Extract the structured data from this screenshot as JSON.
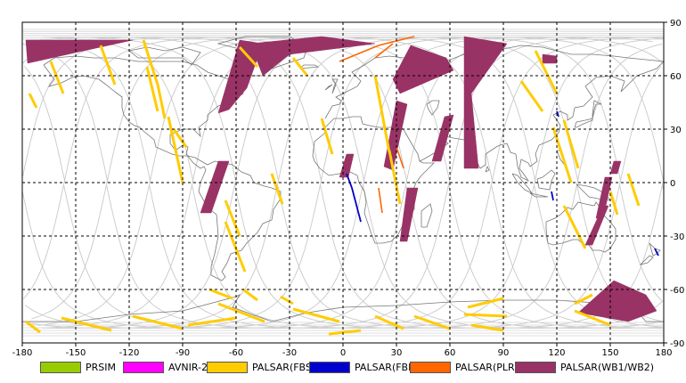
{
  "chart_data": {
    "type": "map",
    "projection": "equirectangular",
    "x_ticks": [
      "-180",
      "-150",
      "-120",
      "-90",
      "-60",
      "-30",
      "0",
      "30",
      "60",
      "90",
      "120",
      "150",
      "180"
    ],
    "y_ticks": [
      "90",
      "60",
      "30",
      "0",
      "-30",
      "-60",
      "-90"
    ],
    "xlim": [
      -180,
      180
    ],
    "ylim": [
      -90,
      90
    ],
    "grid": true,
    "colors": {
      "PRSIM": "#99cc00",
      "AVNIR-2": "#ff00ff",
      "PALSAR(FBS)": "#ffcc00",
      "PALSAR(FBD)": "#0000cc",
      "PALSAR(PLR)": "#ff6600",
      "PALSAR(WB1/WB2)": "#993366"
    },
    "legend": [
      {
        "label": "PRSIM",
        "color": "#99cc00"
      },
      {
        "label": "AVNIR-2",
        "color": "#ff00ff"
      },
      {
        "label": "PALSAR(FBS)",
        "color": "#ffcc00"
      },
      {
        "label": "PALSAR(FBD)",
        "color": "#0000cc"
      },
      {
        "label": "PALSAR(PLR)",
        "color": "#ff6600"
      },
      {
        "label": "PALSAR(WB1/WB2)",
        "color": "#993366"
      }
    ],
    "wb_swaths": [
      [
        [
          -178,
          80
        ],
        [
          -118,
          80
        ],
        [
          -150,
          73
        ],
        [
          -177,
          67
        ]
      ],
      [
        [
          -58,
          80
        ],
        [
          -45,
          78
        ],
        [
          -54,
          53
        ],
        [
          -64,
          41
        ],
        [
          -70,
          39
        ]
      ],
      [
        [
          -52,
          78
        ],
        [
          -12,
          82
        ],
        [
          18,
          78
        ],
        [
          -30,
          72
        ],
        [
          -45,
          60
        ]
      ],
      [
        [
          38,
          77
        ],
        [
          58,
          70
        ],
        [
          62,
          63
        ],
        [
          32,
          50
        ],
        [
          28,
          58
        ]
      ],
      [
        [
          68,
          82
        ],
        [
          92,
          78
        ],
        [
          72,
          50
        ],
        [
          76,
          8
        ],
        [
          68,
          8
        ],
        [
          68,
          50
        ]
      ],
      [
        [
          112,
          72
        ],
        [
          120,
          71
        ],
        [
          120,
          67
        ],
        [
          112,
          67
        ]
      ],
      [
        [
          30,
          46
        ],
        [
          36,
          44
        ],
        [
          28,
          7
        ],
        [
          23,
          9
        ]
      ],
      [
        [
          57,
          37
        ],
        [
          62,
          38
        ],
        [
          55,
          12
        ],
        [
          50,
          12
        ]
      ],
      [
        [
          -70,
          12
        ],
        [
          -64,
          12
        ],
        [
          -74,
          -17
        ],
        [
          -80,
          -17
        ]
      ],
      [
        [
          2,
          16
        ],
        [
          6,
          16
        ],
        [
          3,
          3
        ],
        [
          -2,
          3
        ]
      ],
      [
        [
          152,
          -55
        ],
        [
          170,
          -63
        ],
        [
          176,
          -72
        ],
        [
          160,
          -78
        ],
        [
          132,
          -73
        ]
      ],
      [
        [
          146,
          -13
        ],
        [
          149,
          -13
        ],
        [
          140,
          -35
        ],
        [
          136,
          -35
        ]
      ],
      [
        [
          147,
          3
        ],
        [
          151,
          3
        ],
        [
          146,
          -20
        ],
        [
          142,
          -20
        ]
      ],
      [
        [
          152,
          12
        ],
        [
          156,
          12
        ],
        [
          154,
          5
        ],
        [
          150,
          5
        ]
      ],
      [
        [
          36,
          -3
        ],
        [
          42,
          -3
        ],
        [
          36,
          -33
        ],
        [
          32,
          -33
        ]
      ]
    ],
    "fbs_swaths": [
      [
        [
          -176,
          50
        ],
        [
          -172,
          42
        ]
      ],
      [
        [
          -164,
          68
        ],
        [
          -157,
          50
        ]
      ],
      [
        [
          -136,
          77
        ],
        [
          -128,
          55
        ]
      ],
      [
        [
          -112,
          80
        ],
        [
          -104,
          55
        ],
        [
          -100,
          36
        ]
      ],
      [
        [
          -98,
          37
        ],
        [
          -90,
          0
        ]
      ],
      [
        [
          -66,
          -22
        ],
        [
          -55,
          -50
        ]
      ],
      [
        [
          -75,
          -60
        ],
        [
          -62,
          -65
        ]
      ],
      [
        [
          -44,
          -78
        ],
        [
          -70,
          -68
        ]
      ],
      [
        [
          -90,
          -82
        ],
        [
          -118,
          -75
        ]
      ],
      [
        [
          -130,
          -83
        ],
        [
          -158,
          -76
        ]
      ],
      [
        [
          -170,
          -84
        ],
        [
          -178,
          -78
        ]
      ],
      [
        [
          -60,
          -76
        ],
        [
          -87,
          -80
        ]
      ],
      [
        [
          -2,
          -78
        ],
        [
          -28,
          -71
        ]
      ],
      [
        [
          10,
          -83
        ],
        [
          -8,
          -85
        ]
      ],
      [
        [
          34,
          -82
        ],
        [
          18,
          -75
        ]
      ],
      [
        [
          60,
          -82
        ],
        [
          40,
          -75
        ]
      ],
      [
        [
          90,
          -83
        ],
        [
          72,
          -80
        ]
      ],
      [
        [
          92,
          -75
        ],
        [
          68,
          -74
        ]
      ],
      [
        [
          150,
          -80
        ],
        [
          130,
          -72
        ]
      ],
      [
        [
          -12,
          36
        ],
        [
          -6,
          16
        ]
      ],
      [
        [
          18,
          60
        ],
        [
          26,
          17
        ]
      ],
      [
        [
          26,
          18
        ],
        [
          32,
          -12
        ]
      ],
      [
        [
          108,
          74
        ],
        [
          120,
          50
        ]
      ],
      [
        [
          100,
          57
        ],
        [
          112,
          40
        ]
      ],
      [
        [
          124,
          35
        ],
        [
          132,
          8
        ]
      ],
      [
        [
          118,
          31
        ],
        [
          128,
          0
        ]
      ],
      [
        [
          124,
          -13
        ],
        [
          136,
          -37
        ]
      ],
      [
        [
          160,
          5
        ],
        [
          166,
          -13
        ]
      ],
      [
        [
          -58,
          76
        ],
        [
          -48,
          65
        ]
      ],
      [
        [
          -28,
          70
        ],
        [
          -20,
          60
        ]
      ],
      [
        [
          -110,
          65
        ],
        [
          -104,
          40
        ]
      ],
      [
        [
          -40,
          5
        ],
        [
          -34,
          -12
        ]
      ],
      [
        [
          -56,
          -60
        ],
        [
          -48,
          -66
        ]
      ],
      [
        [
          -35,
          -64
        ],
        [
          -28,
          -68
        ]
      ],
      [
        [
          150,
          -5
        ],
        [
          154,
          -18
        ]
      ],
      [
        [
          -66,
          -10
        ],
        [
          -58,
          -30
        ]
      ],
      [
        [
          -95,
          30
        ],
        [
          -88,
          20
        ]
      ],
      [
        [
          70,
          -70
        ],
        [
          90,
          -65
        ]
      ],
      [
        [
          140,
          -63
        ],
        [
          130,
          -68
        ]
      ]
    ],
    "fbd_swaths": [
      [
        [
          5,
          -3
        ],
        [
          10,
          -22
        ]
      ],
      [
        [
          2,
          5
        ],
        [
          5,
          -3
        ]
      ],
      [
        [
          120,
          40
        ],
        [
          121,
          37
        ]
      ],
      [
        [
          175,
          -37
        ],
        [
          177,
          -41
        ]
      ],
      [
        [
          117,
          -5
        ],
        [
          118,
          -10
        ]
      ]
    ],
    "plr_swaths": [
      [
        [
          -2,
          68
        ],
        [
          20,
          77
        ],
        [
          40,
          82
        ]
      ],
      [
        [
          30,
          20
        ],
        [
          34,
          8
        ]
      ],
      [
        [
          20,
          -3
        ],
        [
          22,
          -17
        ]
      ],
      [
        [
          18,
          70
        ],
        [
          28,
          78
        ]
      ]
    ]
  }
}
